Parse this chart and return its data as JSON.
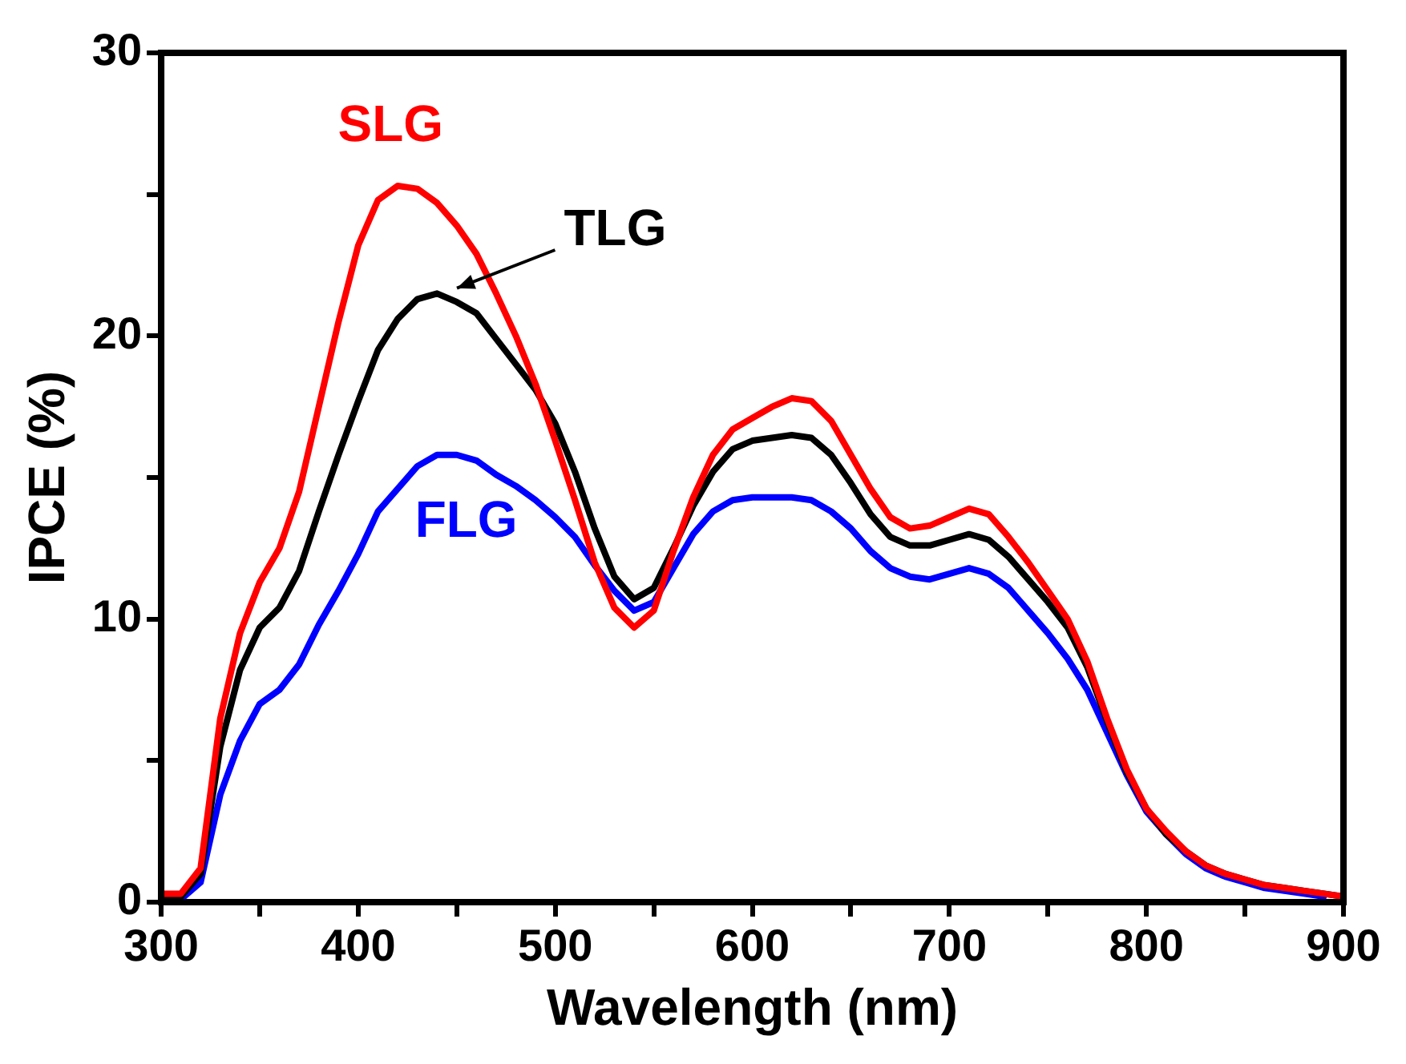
{
  "chart_data": {
    "type": "line",
    "xlabel": "Wavelength (nm)",
    "ylabel": "IPCE (%)",
    "x": [
      300,
      310,
      320,
      330,
      340,
      350,
      360,
      370,
      380,
      390,
      400,
      410,
      420,
      430,
      440,
      450,
      460,
      470,
      480,
      490,
      500,
      510,
      520,
      530,
      540,
      550,
      560,
      570,
      580,
      590,
      600,
      610,
      620,
      630,
      640,
      650,
      660,
      670,
      680,
      690,
      700,
      710,
      720,
      730,
      740,
      750,
      760,
      770,
      780,
      790,
      800,
      810,
      820,
      830,
      840,
      850,
      860,
      870,
      880,
      890,
      900
    ],
    "series": [
      {
        "name": "SLG",
        "color": "#ff0000",
        "values": [
          0.3,
          0.3,
          1.2,
          6.5,
          9.5,
          11.3,
          12.5,
          14.5,
          17.5,
          20.5,
          23.2,
          24.8,
          25.3,
          25.2,
          24.7,
          23.9,
          22.9,
          21.5,
          20,
          18.3,
          16.3,
          14.2,
          12,
          10.4,
          9.7,
          10.3,
          12.4,
          14.3,
          15.8,
          16.7,
          17.1,
          17.5,
          17.8,
          17.7,
          17,
          15.8,
          14.6,
          13.6,
          13.2,
          13.3,
          13.6,
          13.9,
          13.7,
          12.9,
          12,
          11,
          10,
          8.5,
          6.5,
          4.7,
          3.3,
          2.5,
          1.8,
          1.3,
          1,
          0.8,
          0.6,
          0.5,
          0.4,
          0.3,
          0.2
        ]
      },
      {
        "name": "TLG",
        "color": "#000000",
        "values": [
          0.2,
          0.2,
          1,
          5.5,
          8.2,
          9.7,
          10.4,
          11.7,
          13.8,
          15.8,
          17.7,
          19.5,
          20.6,
          21.3,
          21.5,
          21.2,
          20.8,
          19.9,
          19,
          18.1,
          16.9,
          15.2,
          13.2,
          11.5,
          10.7,
          11.1,
          12.5,
          14,
          15.2,
          16,
          16.3,
          16.4,
          16.5,
          16.4,
          15.8,
          14.8,
          13.7,
          12.9,
          12.6,
          12.6,
          12.8,
          13,
          12.8,
          12.2,
          11.4,
          10.6,
          9.7,
          8.3,
          6.4,
          4.6,
          3.3,
          2.4,
          1.8,
          1.3,
          1,
          0.8,
          0.6,
          0.5,
          0.4,
          0.3,
          0.2
        ]
      },
      {
        "name": "FLG",
        "color": "#0000ff",
        "values": [
          null,
          0.1,
          0.7,
          3.8,
          5.7,
          7,
          7.5,
          8.4,
          9.8,
          11,
          12.3,
          13.8,
          14.6,
          15.4,
          15.8,
          15.8,
          15.6,
          15.1,
          14.7,
          14.2,
          13.6,
          12.9,
          11.9,
          11,
          10.3,
          10.6,
          11.8,
          13,
          13.8,
          14.2,
          14.3,
          14.3,
          14.3,
          14.2,
          13.8,
          13.2,
          12.4,
          11.8,
          11.5,
          11.4,
          11.6,
          11.8,
          11.6,
          11.1,
          10.3,
          9.5,
          8.6,
          7.5,
          6,
          4.5,
          3.2,
          2.4,
          1.7,
          1.2,
          0.9,
          0.7,
          0.5,
          0.4,
          0.3,
          0.2,
          null
        ]
      }
    ],
    "xlim": [
      300,
      900
    ],
    "xticks": [
      300,
      {
        "value": 350,
        "label": null
      },
      400,
      {
        "value": 450,
        "label": null
      },
      500,
      {
        "value": 550,
        "label": null
      },
      600,
      {
        "value": 650,
        "label": null
      },
      700,
      {
        "value": 750,
        "label": null
      },
      800,
      {
        "value": 850,
        "label": null
      },
      900
    ],
    "ylim": [
      0,
      30
    ],
    "yticks": [
      0,
      {
        "value": 5,
        "label": null
      },
      10,
      {
        "value": 15,
        "label": null
      },
      20,
      {
        "value": 25,
        "label": null
      },
      30
    ],
    "grid": false,
    "legend": false,
    "marker": "none",
    "line_style": "solid"
  }
}
